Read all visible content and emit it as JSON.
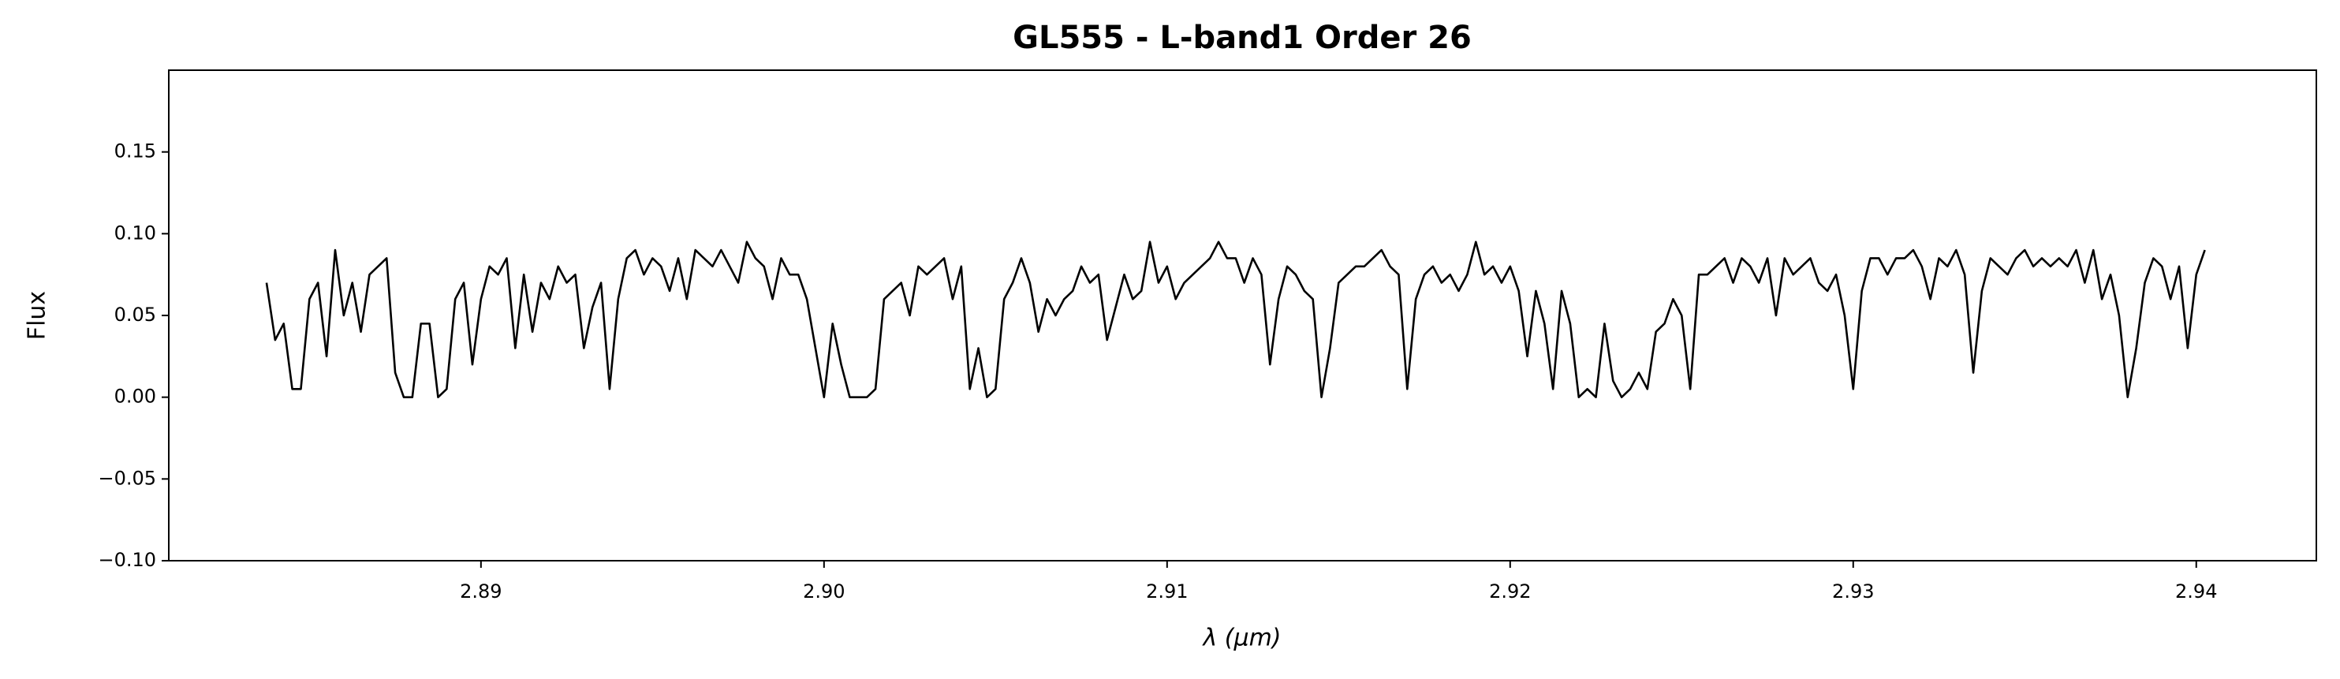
{
  "chart_data": {
    "type": "line",
    "title": "GL555 - L-band1 Order 26",
    "xlabel": "λ (μm)",
    "ylabel": "Flux",
    "color": "#000000",
    "xlim": [
      2.8809,
      2.9435
    ],
    "ylim": [
      -0.1,
      0.2
    ],
    "xticks": [
      2.89,
      {
        "value": 2.9,
        "label": "2.90"
      },
      2.91,
      2.92,
      2.93,
      2.94
    ],
    "yticks": [
      {
        "value": -0.1,
        "label": "−0.10"
      },
      {
        "value": -0.05,
        "label": "−0.05"
      },
      {
        "value": 0,
        "label": "0.00"
      },
      {
        "value": 0.05,
        "label": "0.05"
      },
      {
        "value": 0.1,
        "label": "0.10"
      },
      0.15
    ],
    "x": [
      2.88375,
      2.884,
      2.88425,
      2.8845,
      2.88475,
      2.885,
      2.88525,
      2.8855,
      2.88575,
      2.886,
      2.88625,
      2.8865,
      2.88675,
      2.887,
      2.88725,
      2.8875,
      2.88775,
      2.888,
      2.88825,
      2.8885,
      2.88875,
      2.889,
      2.88925,
      2.8895,
      2.88975,
      2.89,
      2.89025,
      2.8905,
      2.89075,
      2.891,
      2.89125,
      2.8915,
      2.89175,
      2.892,
      2.89225,
      2.8925,
      2.89275,
      2.893,
      2.89325,
      2.8935,
      2.89375,
      2.894,
      2.89425,
      2.8945,
      2.89475,
      2.895,
      2.89525,
      2.8955,
      2.89575,
      2.896,
      2.89625,
      2.8965,
      2.89675,
      2.897,
      2.89725,
      2.8975,
      2.89775,
      2.898,
      2.89825,
      2.8985,
      2.89875,
      2.899,
      2.89925,
      2.8995,
      2.89975,
      2.9,
      2.90025,
      2.9005,
      2.90075,
      2.901,
      2.90125,
      2.9015,
      2.90175,
      2.902,
      2.90225,
      2.9025,
      2.90275,
      2.903,
      2.90325,
      2.9035,
      2.90375,
      2.904,
      2.90425,
      2.9045,
      2.90475,
      2.905,
      2.90525,
      2.9055,
      2.90575,
      2.906,
      2.90625,
      2.9065,
      2.90675,
      2.907,
      2.90725,
      2.9075,
      2.90775,
      2.908,
      2.90825,
      2.9085,
      2.90875,
      2.909,
      2.90925,
      2.9095,
      2.90975,
      2.91,
      2.91025,
      2.9105,
      2.91075,
      2.911,
      2.91125,
      2.9115,
      2.91175,
      2.912,
      2.91225,
      2.9125,
      2.91275,
      2.913,
      2.91325,
      2.9135,
      2.91375,
      2.914,
      2.91425,
      2.9145,
      2.91475,
      2.915,
      2.91525,
      2.9155,
      2.91575,
      2.916,
      2.91625,
      2.9165,
      2.91675,
      2.917,
      2.91725,
      2.9175,
      2.91775,
      2.918,
      2.91825,
      2.9185,
      2.91875,
      2.919,
      2.91925,
      2.9195,
      2.91975,
      2.92,
      2.92025,
      2.9205,
      2.92075,
      2.921,
      2.92125,
      2.9215,
      2.92175,
      2.922,
      2.92225,
      2.9225,
      2.92275,
      2.923,
      2.92325,
      2.9235,
      2.92375,
      2.924,
      2.92425,
      2.9245,
      2.92475,
      2.925,
      2.92525,
      2.9255,
      2.92575,
      2.926,
      2.92625,
      2.9265,
      2.92675,
      2.927,
      2.92725,
      2.9275,
      2.92775,
      2.928,
      2.92825,
      2.9285,
      2.92875,
      2.929,
      2.92925,
      2.9295,
      2.92975,
      2.93,
      2.93025,
      2.9305,
      2.93075,
      2.931,
      2.93125,
      2.9315,
      2.93175,
      2.932,
      2.93225,
      2.9325,
      2.93275,
      2.933,
      2.93325,
      2.9335,
      2.93375,
      2.934,
      2.93425,
      2.9345,
      2.93475,
      2.935,
      2.93525,
      2.9355,
      2.93575,
      2.936,
      2.93625,
      2.9365,
      2.93675,
      2.937,
      2.93725,
      2.9375,
      2.93775,
      2.938,
      2.93825,
      2.9385,
      2.93875,
      2.939,
      2.93925,
      2.9395,
      2.93975,
      2.94,
      2.94025
    ],
    "values": [
      0.07,
      0.035,
      0.045,
      0.005,
      0.005,
      0.06,
      0.07,
      0.025,
      0.09,
      0.05,
      0.07,
      0.04,
      0.075,
      0.08,
      0.085,
      0.015,
      0,
      0,
      0.045,
      0.045,
      0,
      0.005,
      0.06,
      0.07,
      0.02,
      0.06,
      0.08,
      0.075,
      0.085,
      0.03,
      0.075,
      0.04,
      0.07,
      0.06,
      0.08,
      0.07,
      0.075,
      0.03,
      0.055,
      0.07,
      0.005,
      0.06,
      0.085,
      0.09,
      0.075,
      0.085,
      0.08,
      0.065,
      0.085,
      0.06,
      0.09,
      0.085,
      0.08,
      0.09,
      0.08,
      0.07,
      0.095,
      0.085,
      0.08,
      0.06,
      0.085,
      0.075,
      0.075,
      0.06,
      0.03,
      0,
      0.045,
      0.02,
      0,
      0,
      0,
      0.005,
      0.06,
      0.065,
      0.07,
      0.05,
      0.08,
      0.075,
      0.08,
      0.085,
      0.06,
      0.08,
      0.005,
      0.03,
      0,
      0.005,
      0.06,
      0.07,
      0.085,
      0.07,
      0.04,
      0.06,
      0.05,
      0.06,
      0.065,
      0.08,
      0.07,
      0.075,
      0.035,
      0.055,
      0.075,
      0.06,
      0.065,
      0.095,
      0.07,
      0.08,
      0.06,
      0.07,
      0.075,
      0.08,
      0.085,
      0.095,
      0.085,
      0.085,
      0.07,
      0.085,
      0.075,
      0.02,
      0.06,
      0.08,
      0.075,
      0.065,
      0.06,
      0,
      0.03,
      0.07,
      0.075,
      0.08,
      0.08,
      0.085,
      0.09,
      0.08,
      0.075,
      0.005,
      0.06,
      0.075,
      0.08,
      0.07,
      0.075,
      0.065,
      0.075,
      0.095,
      0.075,
      0.08,
      0.07,
      0.08,
      0.065,
      0.025,
      0.065,
      0.045,
      0.005,
      0.065,
      0.045,
      0,
      0.005,
      0,
      0.045,
      0.01,
      0,
      0.005,
      0.015,
      0.005,
      0.04,
      0.045,
      0.06,
      0.05,
      0.005,
      0.075,
      0.075,
      0.08,
      0.085,
      0.07,
      0.085,
      0.08,
      0.07,
      0.085,
      0.05,
      0.085,
      0.075,
      0.08,
      0.085,
      0.07,
      0.065,
      0.075,
      0.05,
      0.005,
      0.065,
      0.085,
      0.085,
      0.075,
      0.085,
      0.085,
      0.09,
      0.08,
      0.06,
      0.085,
      0.08,
      0.09,
      0.075,
      0.015,
      0.065,
      0.085,
      0.08,
      0.075,
      0.085,
      0.09,
      0.08,
      0.085,
      0.08,
      0.085,
      0.08,
      0.09,
      0.07,
      0.09,
      0.06,
      0.075,
      0.05,
      0,
      0.03,
      0.07,
      0.085,
      0.08,
      0.06,
      0.08,
      0.03,
      0.075,
      0.09
    ]
  }
}
